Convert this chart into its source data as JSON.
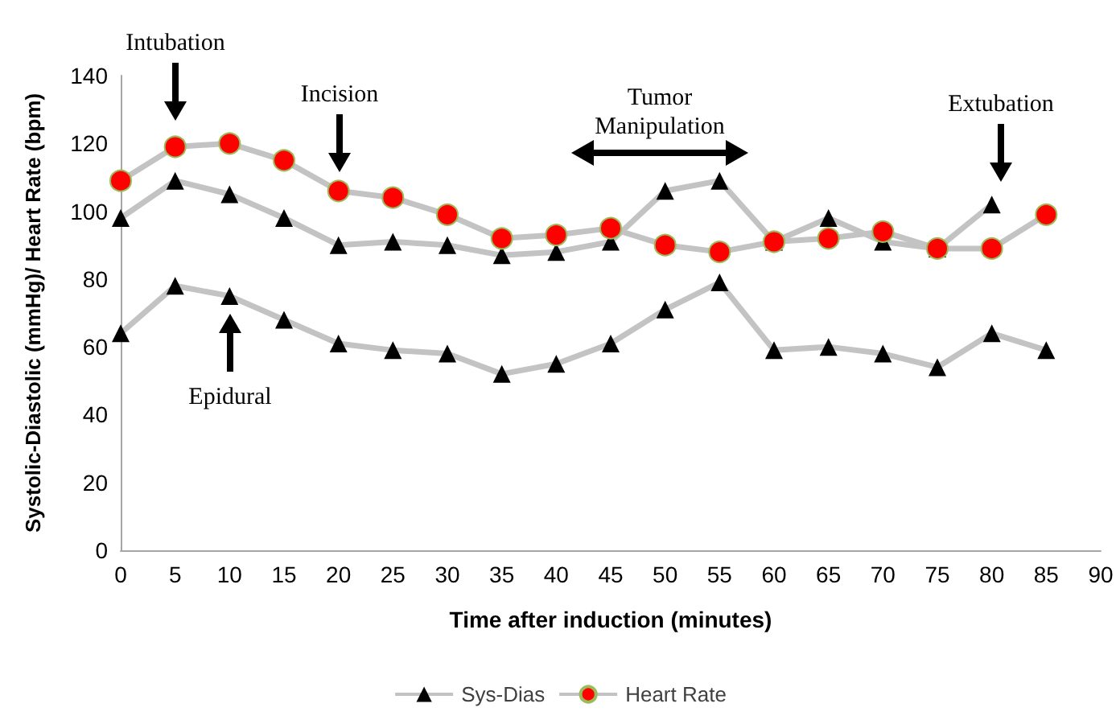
{
  "chart_data": {
    "type": "line",
    "xlabel": "Time after induction (minutes)",
    "ylabel": "Systolic-Diastolic (mmHg)/ Heart Rate (bpm)",
    "x": [
      0,
      5,
      10,
      15,
      20,
      25,
      30,
      35,
      40,
      45,
      50,
      55,
      60,
      65,
      70,
      75,
      80,
      85
    ],
    "series": [
      {
        "name": "Sys-Dias",
        "color": "#000000",
        "marker": "triangle",
        "values": [
          98,
          109,
          105,
          98,
          90,
          91,
          90,
          87,
          88,
          91,
          106,
          109,
          91,
          98,
          91,
          89,
          102,
          null
        ]
      },
      {
        "color": "#000000",
        "marker": "triangle",
        "values": [
          64,
          78,
          75,
          68,
          61,
          59,
          58,
          52,
          55,
          61,
          71,
          79,
          59,
          60,
          58,
          54,
          64,
          59
        ]
      },
      {
        "name": "Heart Rate",
        "color": "#ff0000",
        "marker": "circle",
        "values": [
          109,
          119,
          120,
          115,
          106,
          104,
          99,
          92,
          93,
          95,
          90,
          88,
          91,
          92,
          94,
          89,
          89,
          99
        ]
      }
    ],
    "xlim": [
      0,
      90
    ],
    "xticks": [
      0,
      5,
      10,
      15,
      20,
      25,
      30,
      35,
      40,
      45,
      50,
      55,
      60,
      65,
      70,
      75,
      80,
      85,
      90
    ],
    "ylim": [
      0,
      140
    ],
    "yticks": [
      0,
      20,
      40,
      60,
      80,
      100,
      120,
      140
    ],
    "grid": false,
    "legend": "bottom",
    "annotations": [
      "Intubation",
      "Epidural",
      "Incision",
      "Tumor\nManipulation",
      "Extubation"
    ]
  }
}
